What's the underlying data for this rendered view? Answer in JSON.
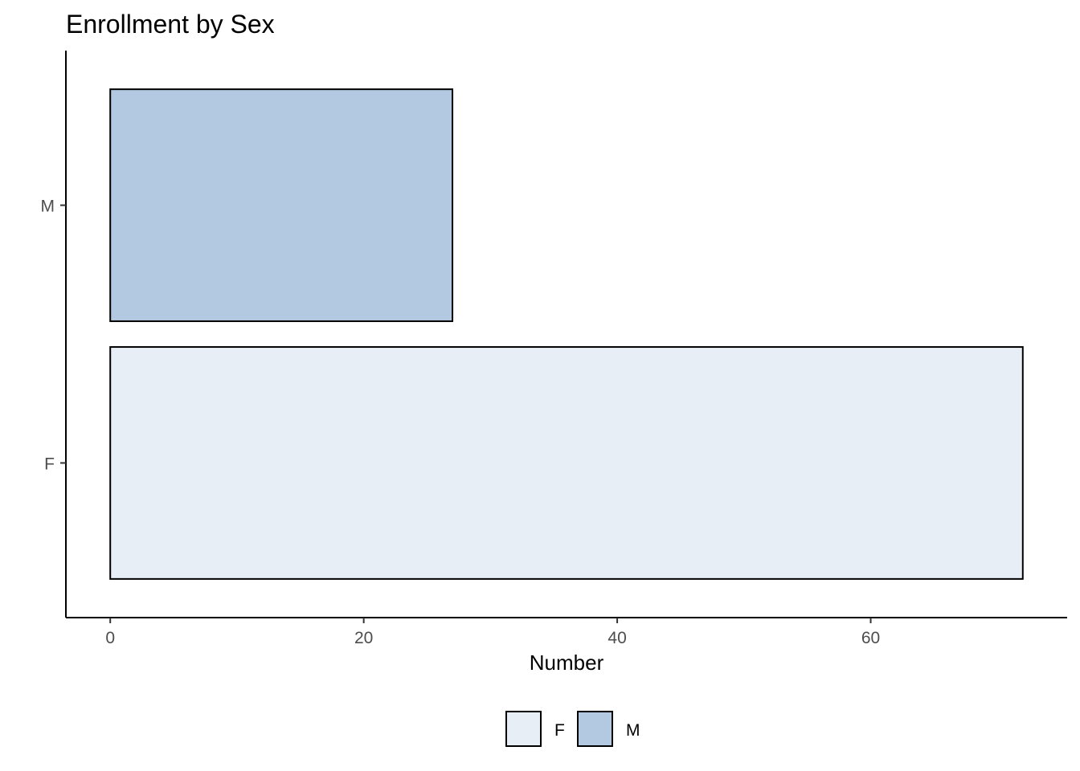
{
  "chart_data": {
    "type": "bar",
    "orientation": "horizontal",
    "title": "Enrollment by Sex",
    "xlabel": "Number",
    "ylabel": "",
    "categories": [
      "F",
      "M"
    ],
    "values": [
      72,
      27
    ],
    "colors": [
      "#e8eef6",
      "#b3c9e1"
    ],
    "xlim": [
      -3.5,
      75.5
    ],
    "xticks": [
      0,
      20,
      40,
      60
    ],
    "grid": false,
    "legend": {
      "position": "bottom",
      "entries": [
        "F",
        "M"
      ]
    }
  }
}
